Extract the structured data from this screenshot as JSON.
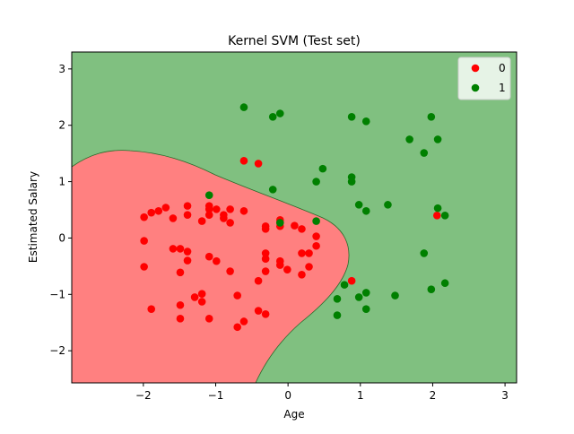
{
  "chart_data": {
    "type": "scatter",
    "title": "Kernel SVM (Test set)",
    "x_label": "Age",
    "y_label": "Estimated Salary",
    "xlim": [
      -2.99,
      3.16
    ],
    "ylim": [
      -2.57,
      3.3
    ],
    "xticks": [
      {
        "value": -2,
        "label": "−2"
      },
      {
        "value": -1,
        "label": "−1"
      },
      0,
      1,
      2,
      3
    ],
    "yticks": [
      {
        "value": -2,
        "label": "−2"
      },
      {
        "value": -1,
        "label": "−1"
      },
      0,
      1,
      2,
      3
    ],
    "legend": "upper right",
    "series": [
      {
        "name": "0",
        "color": "#ff0000",
        "x": [
          -0.61,
          -0.41,
          2.06,
          0.88,
          -1.99,
          -1.89,
          -1.79,
          -1.69,
          -1.99,
          -1.99,
          -1.89,
          -1.59,
          -1.59,
          -1.49,
          -1.39,
          -1.39,
          -1.39,
          -1.39,
          -1.49,
          -1.29,
          -1.19,
          -1.19,
          -1.49,
          -1.49,
          -1.09,
          -1.19,
          -1.09,
          -1.09,
          -1.09,
          -0.99,
          -0.89,
          -0.89,
          -0.8,
          -0.8,
          -0.61,
          -1.09,
          -0.99,
          -0.8,
          -0.7,
          -0.7,
          -0.61,
          -0.41,
          -0.41,
          -0.31,
          -0.31,
          -0.31,
          -0.31,
          -0.31,
          -0.11,
          -0.11,
          -0.11,
          -0.11,
          -0.01,
          0.09,
          0.19,
          0.19,
          0.29,
          0.19,
          0.29,
          0.39,
          0.39,
          -0.31
        ],
        "y": [
          1.37,
          1.32,
          0.4,
          -0.76,
          0.37,
          0.45,
          0.48,
          0.54,
          -0.05,
          -0.51,
          -1.26,
          0.35,
          -0.19,
          -0.19,
          0.57,
          0.41,
          -0.24,
          -0.4,
          -0.61,
          -1.05,
          -0.99,
          -1.13,
          -1.19,
          -1.43,
          -1.43,
          0.3,
          0.57,
          0.51,
          0.41,
          0.51,
          0.41,
          0.35,
          0.27,
          0.51,
          0.48,
          -0.33,
          -0.41,
          -0.59,
          -1.02,
          -1.58,
          -1.48,
          -0.76,
          -1.29,
          -1.35,
          -0.59,
          -0.37,
          0.21,
          0.16,
          0.21,
          0.32,
          -0.41,
          -0.48,
          -0.56,
          0.22,
          0.16,
          -0.27,
          -0.27,
          -0.65,
          -0.51,
          0.03,
          -0.14,
          -0.27
        ]
      },
      {
        "name": "1",
        "color": "#008000",
        "x": [
          -0.61,
          -0.21,
          -0.11,
          0.88,
          1.08,
          1.98,
          1.68,
          2.07,
          1.88,
          0.48,
          0.39,
          0.88,
          0.88,
          -0.21,
          -1.09,
          0.98,
          1.38,
          1.08,
          2.07,
          2.17,
          -0.11,
          0.39,
          1.88,
          2.17,
          1.98,
          0.78,
          1.08,
          1.48,
          0.98,
          0.68,
          1.08,
          0.68
        ],
        "y": [
          2.32,
          2.15,
          2.21,
          2.15,
          2.07,
          2.15,
          1.75,
          1.75,
          1.51,
          1.23,
          1.0,
          1.08,
          1.0,
          0.86,
          0.76,
          0.59,
          0.59,
          0.48,
          0.53,
          0.4,
          0.27,
          0.3,
          -0.27,
          -0.8,
          -0.91,
          -0.83,
          -0.97,
          -1.02,
          -1.05,
          -1.08,
          -1.26,
          -1.37
        ]
      }
    ]
  }
}
